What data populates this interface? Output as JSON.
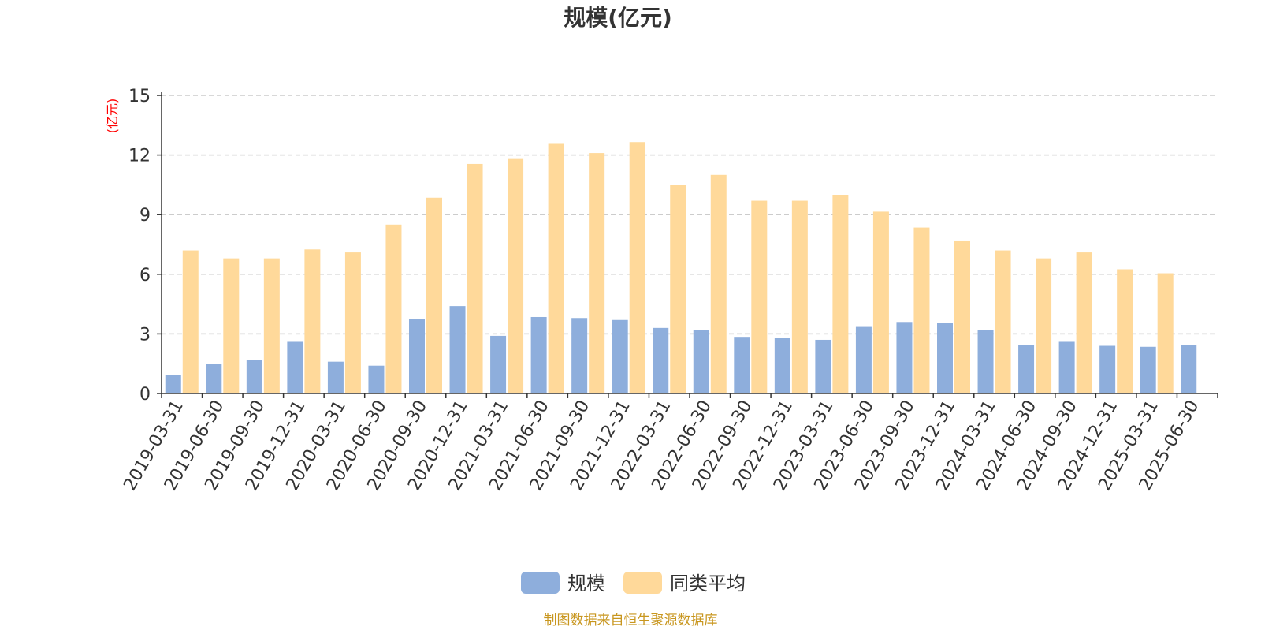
{
  "chart_data": {
    "type": "bar",
    "title": "规模(亿元)",
    "ylabel": "(亿元)",
    "ylim": [
      0,
      15
    ],
    "yticks": [
      "0",
      "3",
      "6",
      "9",
      "12",
      "15"
    ],
    "grid": true,
    "legend_position": "bottom-center",
    "categories": [
      "2019-03-31",
      "2019-06-30",
      "2019-09-30",
      "2019-12-31",
      "2020-03-31",
      "2020-06-30",
      "2020-09-30",
      "2020-12-31",
      "2021-03-31",
      "2021-06-30",
      "2021-09-30",
      "2021-12-31",
      "2022-03-31",
      "2022-06-30",
      "2022-09-30",
      "2022-12-31",
      "2023-03-31",
      "2023-06-30",
      "2023-09-30",
      "2023-12-31",
      "2024-03-31",
      "2024-06-30",
      "2024-09-30",
      "2024-12-31",
      "2025-03-31",
      "2025-06-30"
    ],
    "series": [
      {
        "name": "规模",
        "color": "#8EAEDC",
        "values": [
          0.95,
          1.5,
          1.7,
          2.6,
          1.6,
          1.4,
          3.75,
          4.4,
          2.9,
          3.85,
          3.8,
          3.7,
          3.3,
          3.2,
          2.85,
          2.8,
          2.7,
          3.35,
          3.6,
          3.55,
          3.2,
          2.45,
          2.6,
          2.4,
          2.35,
          2.45
        ]
      },
      {
        "name": "同类平均",
        "color": "#FFD99A",
        "values": [
          7.2,
          6.8,
          6.8,
          7.25,
          7.1,
          8.5,
          9.85,
          11.55,
          11.8,
          12.6,
          12.1,
          12.65,
          10.5,
          11.0,
          9.7,
          9.7,
          10.0,
          9.15,
          8.35,
          7.7,
          7.2,
          6.8,
          7.1,
          6.25,
          6.05,
          null
        ]
      }
    ]
  },
  "source_note": "制图数据来自恒生聚源数据库",
  "colors": {
    "unit_label": "#FF0000",
    "source_note": "#C8961E",
    "axis": "#333333",
    "grid": "#CCCCCC"
  }
}
